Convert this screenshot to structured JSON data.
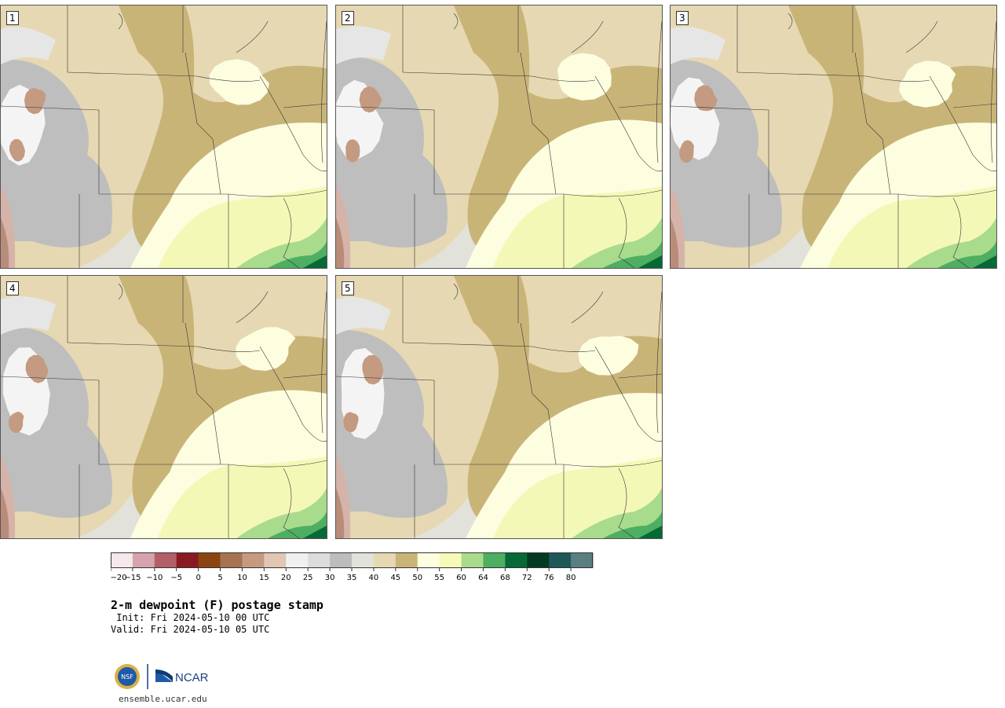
{
  "panels": [
    {
      "label": "1",
      "seed": 1
    },
    {
      "label": "2",
      "seed": 2
    },
    {
      "label": "3",
      "seed": 3
    },
    {
      "label": "4",
      "seed": 4
    },
    {
      "label": "5",
      "seed": 5
    }
  ],
  "colorbar": {
    "colors": [
      "#f5e7ea",
      "#d6a3aa",
      "#b26068",
      "#8a1a22",
      "#8b4513",
      "#a87350",
      "#c49a80",
      "#e0c6b3",
      "#f0f0f0",
      "#dcdcdc",
      "#bcbcbc",
      "#e2e2da",
      "#e6d8b2",
      "#c9b478",
      "#fdfde0",
      "#f6fab8",
      "#a9db8c",
      "#4eae62",
      "#066a36",
      "#043a20",
      "#1e5858",
      "#5a7f80"
    ],
    "ticks": [
      "−20",
      "−15",
      "−10",
      "−5",
      "0",
      "5",
      "10",
      "15",
      "20",
      "25",
      "30",
      "35",
      "40",
      "45",
      "50",
      "55",
      "60",
      "64",
      "68",
      "72",
      "76",
      "80"
    ]
  },
  "title": "2-m dewpoint (F) postage stamp",
  "init": " Init: Fri 2024-05-10 00 UTC",
  "valid": "Valid: Fri 2024-05-10 05 UTC",
  "logo": {
    "nsf": "NSF",
    "ncar": "NCAR"
  },
  "url": "ensemble.ucar.edu"
}
